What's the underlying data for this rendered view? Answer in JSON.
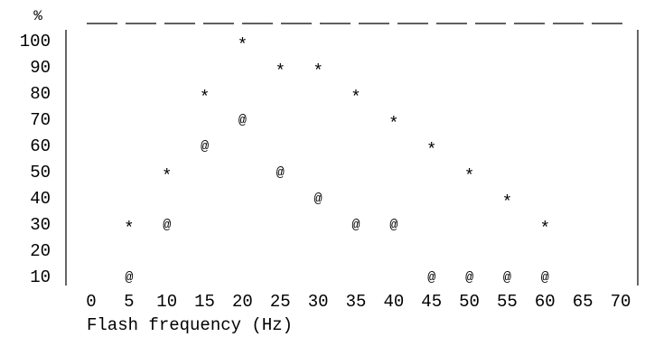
{
  "chart_data": {
    "type": "scatter",
    "title": "",
    "xlabel": "Flash frequency (Hz)",
    "ylabel": "%",
    "xlim": [
      0,
      70
    ],
    "ylim": [
      10,
      100
    ],
    "x_ticks": [
      "0",
      "5",
      "10",
      "15",
      "20",
      "25",
      "30",
      "35",
      "40",
      "45",
      "50",
      "55",
      "60",
      "65",
      "70"
    ],
    "y_ticks": [
      "100",
      "90",
      "80",
      "70",
      "60",
      "50",
      "40",
      "30",
      "20",
      "10"
    ],
    "grid": false,
    "series": [
      {
        "marker": "*",
        "points": [
          {
            "x": 5,
            "y": 30
          },
          {
            "x": 10,
            "y": 50
          },
          {
            "x": 15,
            "y": 80
          },
          {
            "x": 20,
            "y": 100
          },
          {
            "x": 25,
            "y": 90
          },
          {
            "x": 30,
            "y": 90
          },
          {
            "x": 35,
            "y": 80
          },
          {
            "x": 40,
            "y": 70
          },
          {
            "x": 45,
            "y": 60
          },
          {
            "x": 50,
            "y": 50
          },
          {
            "x": 55,
            "y": 40
          },
          {
            "x": 60,
            "y": 30
          }
        ]
      },
      {
        "marker": "@",
        "points": [
          {
            "x": 5,
            "y": 10
          },
          {
            "x": 10,
            "y": 30
          },
          {
            "x": 15,
            "y": 60
          },
          {
            "x": 20,
            "y": 70
          },
          {
            "x": 25,
            "y": 50
          },
          {
            "x": 30,
            "y": 40
          },
          {
            "x": 35,
            "y": 30
          },
          {
            "x": 40,
            "y": 30
          },
          {
            "x": 45,
            "y": 10
          },
          {
            "x": 50,
            "y": 10
          },
          {
            "x": 55,
            "y": 10
          },
          {
            "x": 60,
            "y": 10
          }
        ]
      }
    ]
  }
}
